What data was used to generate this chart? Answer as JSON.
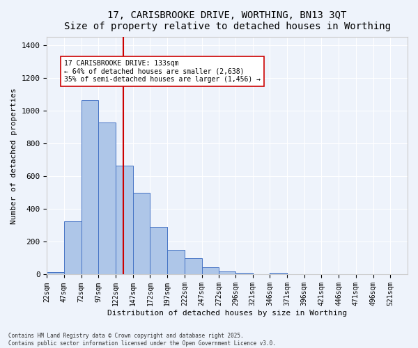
{
  "title": "17, CARISBROOKE DRIVE, WORTHING, BN13 3QT",
  "subtitle": "Size of property relative to detached houses in Worthing",
  "xlabel": "Distribution of detached houses by size in Worthing",
  "ylabel": "Number of detached properties",
  "bar_values": [
    15,
    325,
    1065,
    930,
    665,
    500,
    290,
    150,
    100,
    45,
    20,
    10,
    0,
    10,
    0,
    0,
    0,
    0,
    0,
    0,
    0
  ],
  "categories": [
    "22sqm",
    "47sqm",
    "72sqm",
    "97sqm",
    "122sqm",
    "147sqm",
    "172sqm",
    "197sqm",
    "222sqm",
    "247sqm",
    "272sqm",
    "296sqm",
    "321sqm",
    "346sqm",
    "371sqm",
    "396sqm",
    "421sqm",
    "446sqm",
    "471sqm",
    "496sqm",
    "521sqm"
  ],
  "bar_color": "#AEC6E8",
  "bar_edge_color": "#4472C4",
  "background_color": "#EEF3FB",
  "grid_color": "#FFFFFF",
  "vline_x": 133,
  "vline_color": "#CC0000",
  "annotation_text": "17 CARISBROOKE DRIVE: 133sqm\n← 64% of detached houses are smaller (2,638)\n35% of semi-detached houses are larger (1,456) →",
  "annotation_box_color": "#FFFFFF",
  "annotation_box_edge": "#CC0000",
  "footnote": "Contains HM Land Registry data © Crown copyright and database right 2025.\nContains public sector information licensed under the Open Government Licence v3.0.",
  "ylim": [
    0,
    1450
  ],
  "yticks": [
    0,
    200,
    400,
    600,
    800,
    1000,
    1200,
    1400
  ],
  "bin_edges": [
    22,
    47,
    72,
    97,
    122,
    147,
    172,
    197,
    222,
    247,
    272,
    296,
    321,
    346,
    371,
    396,
    421,
    446,
    471,
    496,
    521,
    546
  ]
}
